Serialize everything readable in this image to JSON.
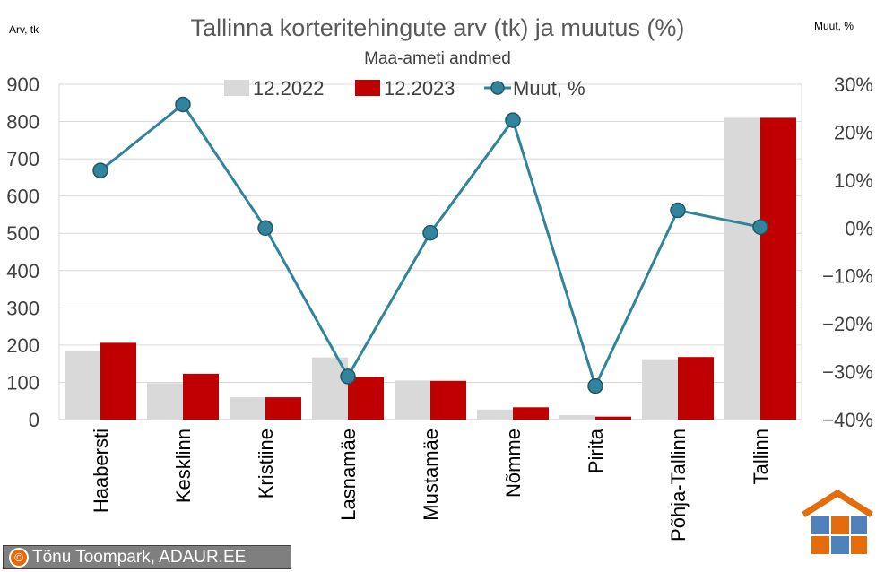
{
  "chart_data": {
    "type": "bar",
    "title": "Tallinna korteritehingute arv (tk) ja muutus (%)",
    "subtitle": "Maa-ameti andmed",
    "ylabel_left": "Arv, tk",
    "ylabel_right": "Muut, %",
    "categories": [
      "Haabersti",
      "Kesklinn",
      "Kristiine",
      "Lasnamäe",
      "Mustamäe",
      "Nõmme",
      "Pirita",
      "Põhja-Tallinn",
      "Tallinn"
    ],
    "series": [
      {
        "name": "12.2022",
        "kind": "bar",
        "axis": "left",
        "color": "#d9d9d9",
        "values": [
          184,
          98,
          60,
          167,
          105,
          27,
          12,
          162,
          810
        ]
      },
      {
        "name": "12.2023",
        "kind": "bar",
        "axis": "left",
        "color": "#c00000",
        "values": [
          206,
          123,
          60,
          114,
          104,
          33,
          8,
          168,
          810
        ]
      },
      {
        "name": "Muut, %",
        "kind": "line",
        "axis": "right",
        "color": "#31849b",
        "values": [
          12,
          25.8,
          0,
          -31,
          -1,
          22.5,
          -33,
          3.7,
          0.2
        ]
      }
    ],
    "ylim_left": [
      0,
      900
    ],
    "yticks_left": [
      "0",
      "100",
      "200",
      "300",
      "400",
      "500",
      "600",
      "700",
      "800",
      "900"
    ],
    "ylim_right": [
      -40,
      30
    ],
    "yticks_right": [
      "-40%",
      "-30%",
      "-20%",
      "-10%",
      "0%",
      "10%",
      "20%",
      "30%"
    ],
    "grid": true,
    "legend_position": "top"
  },
  "footer": {
    "copyright_symbol": "©",
    "credit": "Tõnu Toompark, ADAUR.EE"
  },
  "colors": {
    "bar_2022": "#d9d9d9",
    "bar_2023": "#c00000",
    "line": "#31849b",
    "logo_orange": "#e46c0a",
    "logo_blue": "#4f81bd"
  }
}
